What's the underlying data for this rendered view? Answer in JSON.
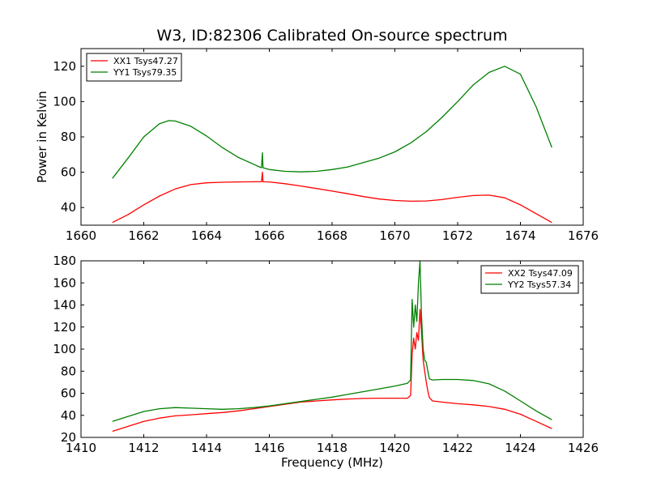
{
  "figure": {
    "title": "W3, ID:82306 Calibrated On-source spectrum"
  },
  "chart_data": [
    {
      "type": "line",
      "title": "W3, ID:82306 Calibrated On-source spectrum",
      "xlabel": "",
      "ylabel": "Power in Kelvin",
      "xlim": [
        1660,
        1676
      ],
      "ylim": [
        30,
        130
      ],
      "xticks": [
        1660,
        1662,
        1664,
        1666,
        1668,
        1670,
        1672,
        1674,
        1676
      ],
      "yticks": [
        40,
        60,
        80,
        100,
        120
      ],
      "legend_position": "top-left",
      "series": [
        {
          "name": "XX1 Tsys47.27",
          "color": "#ff0000",
          "x": [
            1661.0,
            1661.5,
            1662.0,
            1662.5,
            1663.0,
            1663.5,
            1664.0,
            1664.5,
            1665.0,
            1665.5,
            1665.75,
            1665.78,
            1665.8,
            1666.0,
            1666.5,
            1667.0,
            1667.5,
            1668.0,
            1668.5,
            1669.0,
            1669.5,
            1670.0,
            1670.5,
            1671.0,
            1671.5,
            1672.0,
            1672.5,
            1673.0,
            1673.5,
            1674.0,
            1674.5,
            1675.0
          ],
          "y": [
            31.5,
            36.0,
            41.5,
            46.5,
            50.5,
            53.0,
            54.0,
            54.3,
            54.5,
            54.6,
            54.6,
            60.0,
            54.6,
            54.5,
            53.5,
            52.2,
            50.8,
            49.3,
            47.8,
            46.2,
            44.8,
            44.0,
            43.6,
            43.7,
            44.5,
            45.8,
            46.8,
            47.0,
            45.5,
            41.5,
            36.5,
            31.5
          ]
        },
        {
          "name": "YY1 Tsys79.35",
          "color": "#008000",
          "x": [
            1661.0,
            1661.5,
            1662.0,
            1662.5,
            1662.8,
            1663.0,
            1663.5,
            1664.0,
            1664.5,
            1665.0,
            1665.5,
            1665.75,
            1665.78,
            1665.8,
            1666.0,
            1666.5,
            1667.0,
            1667.5,
            1668.0,
            1668.5,
            1669.0,
            1669.5,
            1670.0,
            1670.5,
            1671.0,
            1671.5,
            1672.0,
            1672.5,
            1673.0,
            1673.5,
            1674.0,
            1674.5,
            1675.0
          ],
          "y": [
            56.5,
            68.0,
            80.0,
            87.5,
            89.2,
            89.0,
            86.0,
            80.5,
            74.0,
            68.5,
            64.5,
            62.5,
            71.0,
            62.5,
            61.5,
            60.5,
            60.2,
            60.5,
            61.5,
            63.0,
            65.5,
            68.0,
            71.5,
            76.5,
            83.0,
            91.0,
            100.0,
            109.5,
            116.5,
            120.0,
            115.5,
            97.0,
            74.0
          ]
        }
      ]
    },
    {
      "type": "line",
      "title": "",
      "xlabel": "Frequency (MHz)",
      "ylabel": "",
      "xlim": [
        1410,
        1426
      ],
      "ylim": [
        20,
        180
      ],
      "xticks": [
        1410,
        1412,
        1414,
        1416,
        1418,
        1420,
        1422,
        1424,
        1426
      ],
      "yticks": [
        20,
        40,
        60,
        80,
        100,
        120,
        140,
        160,
        180
      ],
      "legend_position": "top-right",
      "series": [
        {
          "name": "XX2 Tsys47.09",
          "color": "#ff0000",
          "x": [
            1411.0,
            1411.5,
            1412.0,
            1412.5,
            1413.0,
            1413.5,
            1414.0,
            1414.5,
            1415.0,
            1415.5,
            1416.0,
            1416.5,
            1417.0,
            1417.5,
            1418.0,
            1418.5,
            1419.0,
            1419.5,
            1420.0,
            1420.4,
            1420.5,
            1420.55,
            1420.6,
            1420.65,
            1420.7,
            1420.75,
            1420.8,
            1420.85,
            1420.9,
            1420.95,
            1421.0,
            1421.05,
            1421.1,
            1421.2,
            1421.5,
            1422.0,
            1422.5,
            1423.0,
            1423.5,
            1424.0,
            1424.5,
            1425.0
          ],
          "y": [
            25.5,
            30.0,
            34.5,
            37.5,
            39.5,
            40.5,
            41.5,
            42.5,
            44.0,
            46.0,
            48.0,
            50.0,
            52.0,
            53.0,
            54.0,
            54.8,
            55.3,
            55.5,
            55.5,
            55.5,
            58.0,
            95.0,
            110.0,
            100.0,
            115.0,
            108.0,
            136.0,
            115.0,
            90.0,
            80.0,
            70.0,
            62.0,
            56.0,
            53.0,
            52.0,
            50.5,
            49.5,
            48.0,
            45.5,
            41.0,
            34.5,
            28.0
          ]
        },
        {
          "name": "YY2 Tsys57.34",
          "color": "#008000",
          "x": [
            1411.0,
            1411.5,
            1412.0,
            1412.5,
            1413.0,
            1413.5,
            1414.0,
            1414.5,
            1415.0,
            1415.5,
            1416.0,
            1416.5,
            1417.0,
            1417.5,
            1418.0,
            1418.5,
            1419.0,
            1419.5,
            1420.0,
            1420.4,
            1420.5,
            1420.55,
            1420.6,
            1420.65,
            1420.7,
            1420.75,
            1420.8,
            1420.85,
            1420.9,
            1420.95,
            1421.0,
            1421.05,
            1421.1,
            1421.2,
            1421.5,
            1422.0,
            1422.5,
            1423.0,
            1423.5,
            1424.0,
            1424.5,
            1425.0
          ],
          "y": [
            34.5,
            39.0,
            43.5,
            46.0,
            47.0,
            46.5,
            46.0,
            45.5,
            46.0,
            47.0,
            48.5,
            50.5,
            52.5,
            54.5,
            56.5,
            59.0,
            61.5,
            64.0,
            66.5,
            69.0,
            72.0,
            145.0,
            120.0,
            140.0,
            125.0,
            160.0,
            180.0,
            130.0,
            100.0,
            90.0,
            88.0,
            80.0,
            73.0,
            72.0,
            72.5,
            72.5,
            71.5,
            68.5,
            62.0,
            53.0,
            44.0,
            36.0
          ]
        }
      ]
    }
  ]
}
